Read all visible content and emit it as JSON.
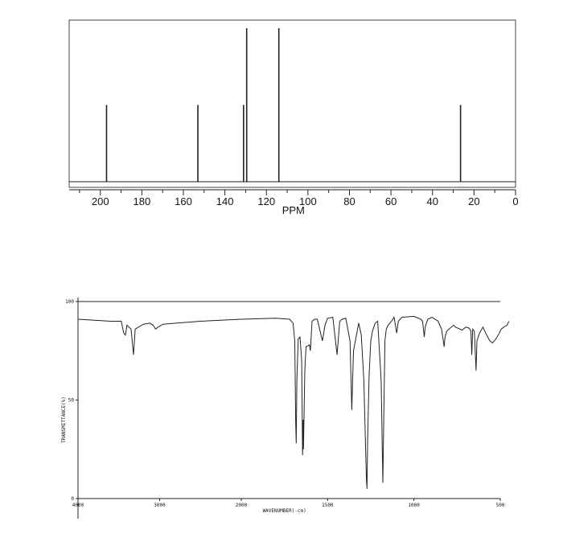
{
  "chart_data": [
    {
      "type": "bar",
      "xlabel": "PPM",
      "xlim": [
        215,
        0
      ],
      "x_ticks": [
        200,
        180,
        160,
        140,
        120,
        100,
        80,
        60,
        40,
        20,
        0
      ],
      "peaks": [
        {
          "x": 197.0,
          "y": 0.5
        },
        {
          "x": 153.0,
          "y": 0.5
        },
        {
          "x": 131.0,
          "y": 0.5
        },
        {
          "x": 129.5,
          "y": 1.0
        },
        {
          "x": 114.0,
          "y": 1.0
        },
        {
          "x": 26.5,
          "y": 0.5
        }
      ]
    },
    {
      "type": "line",
      "xlabel": "WAVENUMBER(-cm)",
      "ylabel": "TRANSMITTANCE(%)",
      "xlim": [
        4000,
        450
      ],
      "ylim": [
        0,
        100
      ],
      "x_ticks": [
        "4000",
        "3000",
        "2000",
        "1500",
        "1000",
        "500"
      ],
      "y_ticks": [
        "0",
        "50",
        "100"
      ],
      "series": [
        {
          "points": [
            [
              4000,
              91
            ],
            [
              3800,
              90.5
            ],
            [
              3600,
              90
            ],
            [
              3470,
              90
            ],
            [
              3440,
              84
            ],
            [
              3420,
              83
            ],
            [
              3400,
              88
            ],
            [
              3350,
              86
            ],
            [
              3320,
              73
            ],
            [
              3300,
              86
            ],
            [
              3200,
              88.5
            ],
            [
              3120,
              89
            ],
            [
              3080,
              88
            ],
            [
              3050,
              86
            ],
            [
              3020,
              87
            ],
            [
              2960,
              88.5
            ],
            [
              2800,
              89
            ],
            [
              2500,
              90
            ],
            [
              2000,
              91
            ],
            [
              1800,
              91.5
            ],
            [
              1720,
              91
            ],
            [
              1700,
              89
            ],
            [
              1690,
              80
            ],
            [
              1685,
              40
            ],
            [
              1682,
              28
            ],
            [
              1678,
              60
            ],
            [
              1670,
              81
            ],
            [
              1660,
              82
            ],
            [
              1650,
              70
            ],
            [
              1645,
              22
            ],
            [
              1642,
              40
            ],
            [
              1640,
              25
            ],
            [
              1632,
              65
            ],
            [
              1625,
              77
            ],
            [
              1605,
              78
            ],
            [
              1600,
              75
            ],
            [
              1590,
              90
            ],
            [
              1575,
              91
            ],
            [
              1560,
              91
            ],
            [
              1530,
              80
            ],
            [
              1515,
              88
            ],
            [
              1500,
              91.5
            ],
            [
              1470,
              92
            ],
            [
              1445,
              73
            ],
            [
              1430,
              90
            ],
            [
              1415,
              91
            ],
            [
              1395,
              91.5
            ],
            [
              1370,
              80
            ],
            [
              1360,
              45
            ],
            [
              1350,
              75
            ],
            [
              1320,
              89
            ],
            [
              1305,
              83
            ],
            [
              1300,
              75
            ],
            [
              1290,
              60
            ],
            [
              1280,
              25
            ],
            [
              1275,
              10
            ],
            [
              1272,
              5
            ],
            [
              1268,
              30
            ],
            [
              1260,
              62
            ],
            [
              1250,
              80
            ],
            [
              1240,
              85
            ],
            [
              1225,
              89
            ],
            [
              1210,
              90
            ],
            [
              1190,
              60
            ],
            [
              1180,
              8
            ],
            [
              1175,
              40
            ],
            [
              1168,
              80
            ],
            [
              1160,
              86
            ],
            [
              1150,
              88
            ],
            [
              1130,
              90
            ],
            [
              1115,
              92
            ],
            [
              1100,
              84
            ],
            [
              1090,
              90
            ],
            [
              1070,
              92
            ],
            [
              1000,
              92.5
            ],
            [
              960,
              91
            ],
            [
              950,
              90
            ],
            [
              940,
              82
            ],
            [
              935,
              87
            ],
            [
              920,
              91
            ],
            [
              895,
              92
            ],
            [
              860,
              90
            ],
            [
              840,
              86
            ],
            [
              830,
              80
            ],
            [
              825,
              77
            ],
            [
              820,
              82
            ],
            [
              810,
              85
            ],
            [
              770,
              88
            ],
            [
              760,
              87
            ],
            [
              720,
              85.5
            ],
            [
              700,
              87
            ],
            [
              680,
              86.5
            ],
            [
              670,
              85
            ],
            [
              665,
              73
            ],
            [
              660,
              86
            ],
            [
              650,
              85
            ],
            [
              640,
              65
            ],
            [
              635,
              80
            ],
            [
              620,
              84
            ],
            [
              600,
              87
            ],
            [
              585,
              84
            ],
            [
              560,
              80
            ],
            [
              545,
              79
            ],
            [
              525,
              81
            ],
            [
              505,
              84
            ],
            [
              495,
              86
            ],
            [
              480,
              87
            ],
            [
              460,
              88
            ],
            [
              450,
              90
            ]
          ]
        }
      ]
    }
  ]
}
